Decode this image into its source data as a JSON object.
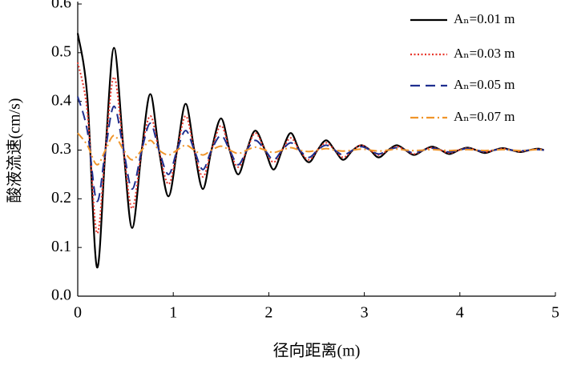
{
  "chart_data": {
    "type": "line",
    "x_label": "径向距离(m)",
    "y_label": "酸液流速(cm/s)",
    "x": [
      0,
      0.1,
      0.2,
      0.29,
      0.38,
      0.48,
      0.57,
      0.67,
      0.76,
      0.85,
      0.95,
      1.04,
      1.13,
      1.22,
      1.31,
      1.4,
      1.5,
      1.59,
      1.68,
      1.77,
      1.86,
      1.96,
      2.05,
      2.14,
      2.23,
      2.32,
      2.42,
      2.51,
      2.6,
      2.69,
      2.78,
      2.88,
      2.97,
      3.06,
      3.15,
      3.25,
      3.34,
      3.43,
      3.52,
      3.62,
      3.71,
      3.8,
      3.89,
      3.99,
      4.08,
      4.17,
      4.26,
      4.36,
      4.45,
      4.54,
      4.63,
      4.73,
      4.82,
      4.88
    ],
    "series": [
      {
        "name": "Aₙ=0.01 m",
        "color": "#000000",
        "dash": "solid",
        "values": [
          0.54,
          0.41,
          0.06,
          0.3,
          0.51,
          0.3,
          0.14,
          0.3,
          0.415,
          0.3,
          0.205,
          0.3,
          0.395,
          0.3,
          0.22,
          0.3,
          0.365,
          0.3,
          0.25,
          0.3,
          0.34,
          0.3,
          0.26,
          0.3,
          0.335,
          0.3,
          0.275,
          0.3,
          0.32,
          0.3,
          0.28,
          0.3,
          0.31,
          0.3,
          0.285,
          0.3,
          0.31,
          0.3,
          0.29,
          0.3,
          0.307,
          0.3,
          0.292,
          0.3,
          0.305,
          0.3,
          0.294,
          0.3,
          0.304,
          0.3,
          0.296,
          0.3,
          0.303,
          0.3
        ]
      },
      {
        "name": "Aₙ=0.03 m",
        "color": "#e8352a",
        "dash": "dot",
        "values": [
          0.48,
          0.38,
          0.13,
          0.3,
          0.45,
          0.3,
          0.18,
          0.3,
          0.37,
          0.3,
          0.23,
          0.3,
          0.37,
          0.3,
          0.245,
          0.3,
          0.35,
          0.3,
          0.265,
          0.3,
          0.335,
          0.3,
          0.275,
          0.3,
          0.325,
          0.3,
          0.28,
          0.3,
          0.315,
          0.3,
          0.285,
          0.3,
          0.31,
          0.3,
          0.29,
          0.3,
          0.307,
          0.3,
          0.292,
          0.3,
          0.305,
          0.3,
          0.294,
          0.3,
          0.304,
          0.3,
          0.296,
          0.3,
          0.303,
          0.3,
          0.297,
          0.3,
          0.302,
          0.3
        ]
      },
      {
        "name": "Aₙ=0.05 m",
        "color": "#1f2f8f",
        "dash": "dash",
        "values": [
          0.41,
          0.34,
          0.195,
          0.3,
          0.39,
          0.3,
          0.22,
          0.3,
          0.355,
          0.3,
          0.25,
          0.3,
          0.34,
          0.3,
          0.26,
          0.3,
          0.33,
          0.3,
          0.27,
          0.3,
          0.32,
          0.3,
          0.28,
          0.3,
          0.315,
          0.3,
          0.285,
          0.3,
          0.31,
          0.3,
          0.29,
          0.3,
          0.307,
          0.3,
          0.292,
          0.3,
          0.305,
          0.3,
          0.294,
          0.3,
          0.304,
          0.3,
          0.296,
          0.3,
          0.303,
          0.3,
          0.297,
          0.3,
          0.302,
          0.3,
          0.298,
          0.3,
          0.301,
          0.3
        ]
      },
      {
        "name": "Aₙ=0.07 m",
        "color": "#f0952a",
        "dash": "dashdot",
        "values": [
          0.335,
          0.31,
          0.27,
          0.3,
          0.33,
          0.3,
          0.28,
          0.3,
          0.32,
          0.3,
          0.29,
          0.3,
          0.31,
          0.3,
          0.29,
          0.3,
          0.308,
          0.3,
          0.293,
          0.3,
          0.306,
          0.3,
          0.295,
          0.3,
          0.305,
          0.3,
          0.297,
          0.3,
          0.303,
          0.3,
          0.298,
          0.3,
          0.302,
          0.3,
          0.298,
          0.3,
          0.302,
          0.3,
          0.299,
          0.3,
          0.301,
          0.3,
          0.299,
          0.3,
          0.301,
          0.3,
          0.299,
          0.3,
          0.301,
          0.3,
          0.299,
          0.3,
          0.301,
          0.3
        ]
      }
    ],
    "xlim": [
      0,
      5
    ],
    "xticks": [
      0,
      1,
      2,
      3,
      4,
      5
    ],
    "ylim": [
      0,
      0.6
    ],
    "yticks": [
      {
        "value": 0,
        "label": "0.0"
      },
      0.1,
      0.2,
      0.3,
      0.4,
      0.5,
      0.6
    ],
    "legend": "upper-right"
  }
}
